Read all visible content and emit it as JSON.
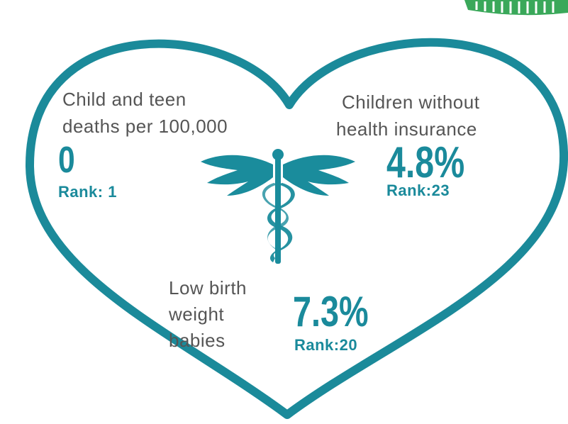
{
  "stats": [
    {
      "label": [
        "Child and teen",
        "deaths per 100,000"
      ],
      "value": "0",
      "rank": "Rank: 1"
    },
    {
      "label": [
        "Children without",
        "health insurance"
      ],
      "value": "4.8%",
      "rank": "Rank:23"
    },
    {
      "label": [
        "Low birth",
        "weight",
        "babies"
      ],
      "value": "7.3%",
      "rank": "Rank:20"
    }
  ]
}
